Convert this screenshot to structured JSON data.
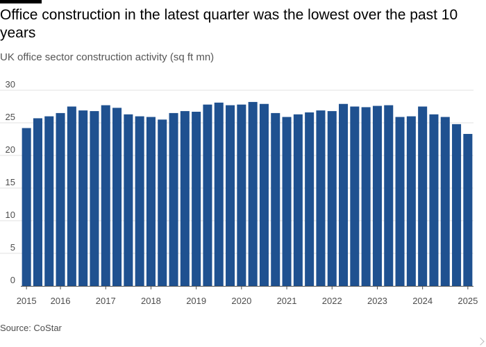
{
  "title": "Office construction in the latest quarter was the lowest over the past 10 years",
  "subtitle": "UK office sector construction activity (sq ft mn)",
  "source": "Source: CoStar",
  "colors": {
    "bar": "#1f5190",
    "grid": "#e0e0e0",
    "axis": "#4d4d4d",
    "text": "#000000"
  },
  "chart_data": {
    "type": "bar",
    "title": "",
    "xlabel": "",
    "ylabel": "",
    "ylim": [
      0,
      30
    ],
    "yticks": [
      0,
      5,
      10,
      15,
      20,
      25,
      30
    ],
    "grid": true,
    "xtick_labels": [
      "2015",
      "2016",
      "2017",
      "2018",
      "2019",
      "2020",
      "2021",
      "2022",
      "2023",
      "2024",
      "2025"
    ],
    "xtick_bar_index": [
      0,
      3,
      7,
      11,
      15,
      19,
      23,
      27,
      31,
      35,
      39
    ],
    "categories": [
      "2015 Q1",
      "2015 Q2",
      "2015 Q3",
      "2015 Q4",
      "2016 Q1",
      "2016 Q2",
      "2016 Q3",
      "2016 Q4",
      "2017 Q1",
      "2017 Q2",
      "2017 Q3",
      "2017 Q4",
      "2018 Q1",
      "2018 Q2",
      "2018 Q3",
      "2018 Q4",
      "2019 Q1",
      "2019 Q2",
      "2019 Q3",
      "2019 Q4",
      "2020 Q1",
      "2020 Q2",
      "2020 Q3",
      "2020 Q4",
      "2021 Q1",
      "2021 Q2",
      "2021 Q3",
      "2021 Q4",
      "2022 Q1",
      "2022 Q2",
      "2022 Q3",
      "2022 Q4",
      "2023 Q1",
      "2023 Q2",
      "2023 Q3",
      "2023 Q4",
      "2024 Q1",
      "2024 Q2",
      "2024 Q3",
      "2024 Q4"
    ],
    "values": [
      24.2,
      25.7,
      26.0,
      26.5,
      27.5,
      26.9,
      26.8,
      27.7,
      27.3,
      26.3,
      26.0,
      25.9,
      25.5,
      26.5,
      26.8,
      26.7,
      27.8,
      28.1,
      27.7,
      27.8,
      28.2,
      27.9,
      26.5,
      25.9,
      26.3,
      26.6,
      26.9,
      26.8,
      27.9,
      27.5,
      27.4,
      27.6,
      27.7,
      25.9,
      26.0,
      27.5,
      26.3,
      25.9,
      24.8,
      23.3
    ]
  }
}
